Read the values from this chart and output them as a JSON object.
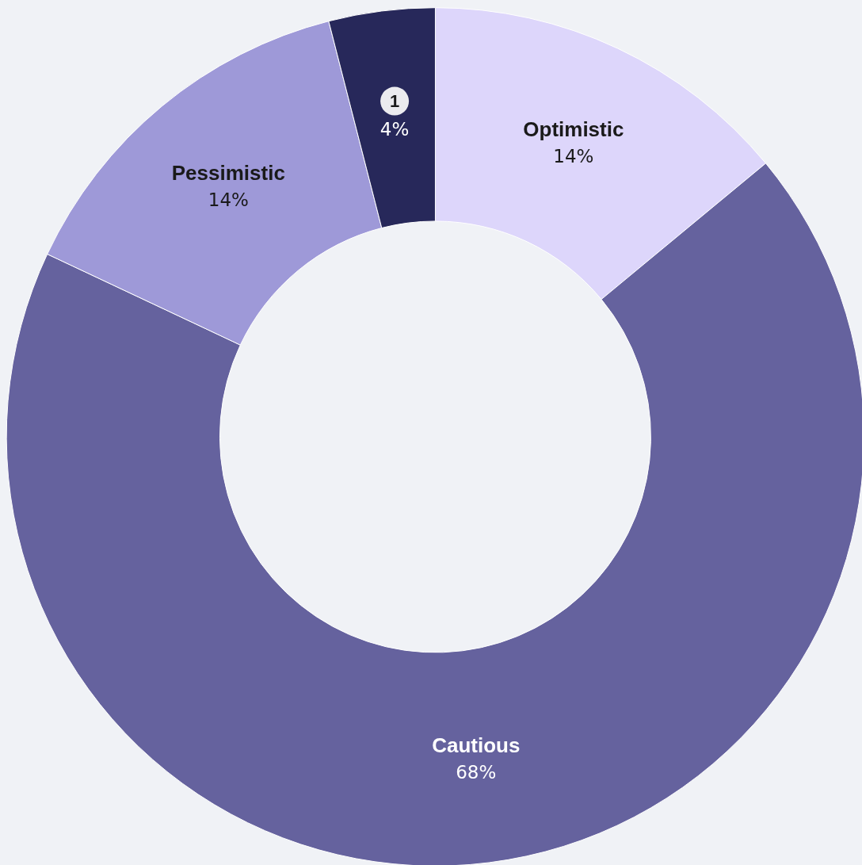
{
  "chart_data": {
    "type": "donut",
    "categories": [
      "Optimistic",
      "Cautious",
      "Pessimistic",
      "1"
    ],
    "values": [
      14,
      68,
      14,
      4
    ],
    "colors": [
      "#ddd6fb",
      "#65629e",
      "#9e99d8",
      "#27285a"
    ],
    "value_labels": [
      "14%",
      "68%",
      "14%",
      "4%"
    ],
    "legend": false
  }
}
